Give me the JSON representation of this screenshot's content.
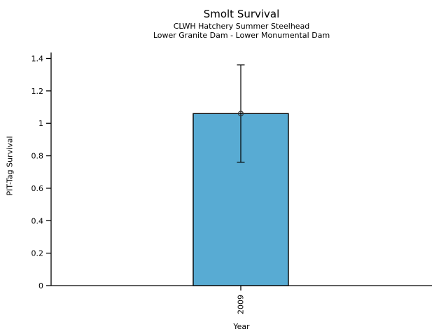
{
  "chart_data": {
    "type": "bar",
    "title": "Smolt Survival",
    "subtitle_lines": [
      "CLWH Hatchery Summer Steelhead",
      "Lower Granite Dam - Lower Monumental Dam"
    ],
    "xlabel": "Year",
    "ylabel": "PIT-Tag Survival",
    "categories": [
      "2009"
    ],
    "series": [
      {
        "name": "PIT-Tag Survival",
        "values": [
          1.06
        ]
      }
    ],
    "error_bars": {
      "low": [
        0.76
      ],
      "high": [
        1.36
      ]
    },
    "ylim": [
      0,
      1.4
    ],
    "yticks": [
      0,
      0.2,
      0.4,
      0.6,
      0.8,
      1,
      1.2,
      1.4
    ],
    "ytick_labels": [
      "0",
      "0.2",
      "0.4",
      "0.6",
      "0.8",
      "1",
      "1.2",
      "1.4"
    ],
    "grid": false,
    "legend": "none",
    "marker": "open-circle",
    "colors": {
      "bar_fill": "#58ABD3",
      "bar_edge": "#000000",
      "axis": "#000000",
      "text": "#000000"
    },
    "background": "#FFFFFF"
  }
}
